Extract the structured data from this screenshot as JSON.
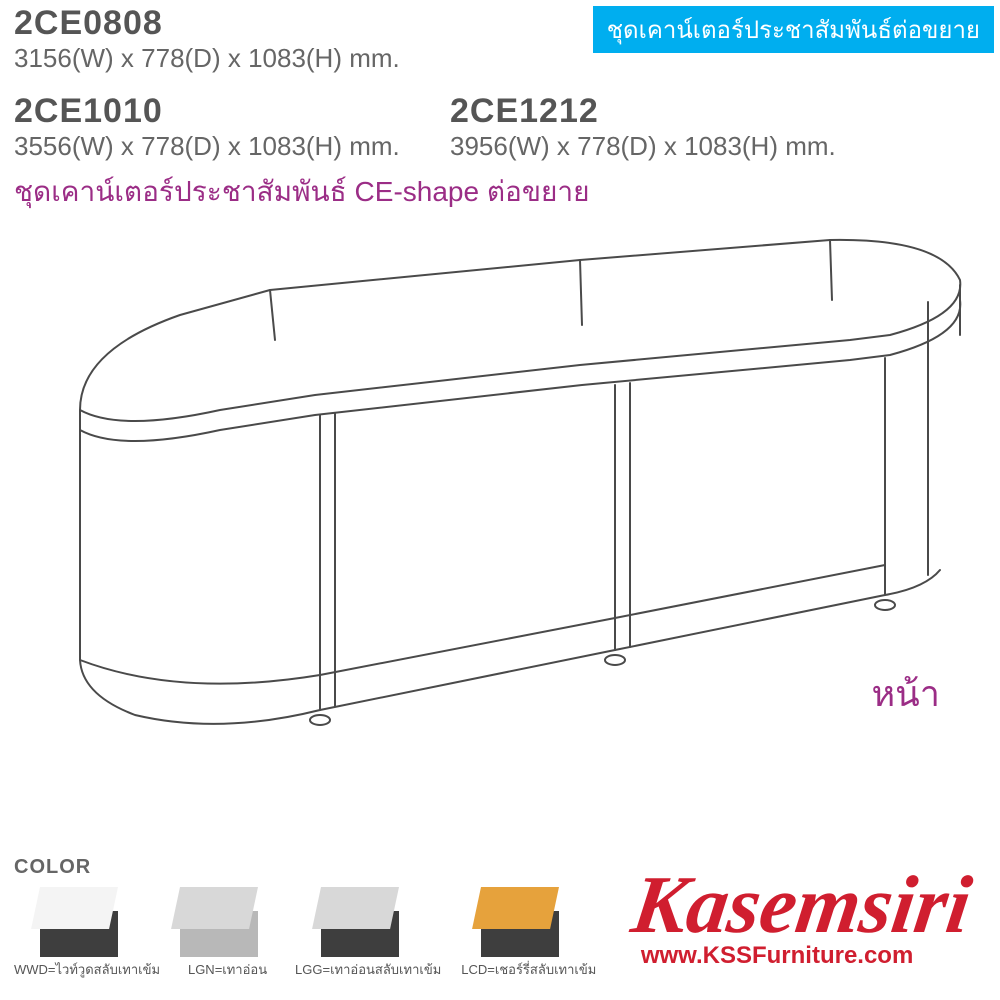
{
  "header_badge": "ชุดเคาน์เตอร์ประชาสัมพันธ์ต่อขยาย",
  "specs": [
    {
      "code": "2CE0808",
      "dims": "3156(W) x 778(D) x 1083(H) mm."
    },
    {
      "code": "2CE1010",
      "dims": "3556(W) x 778(D) x 1083(H) mm."
    },
    {
      "code": "2CE1212",
      "dims": "3956(W) x 778(D) x 1083(H) mm."
    }
  ],
  "product_title": "ชุดเคาน์เตอร์ประชาสัมพันธ์ CE-shape ต่อขยาย",
  "front_label": "หน้า",
  "diagram": {
    "type": "line-drawing",
    "stroke": "#4a4a4a",
    "stroke_width": 2,
    "fill": "#ffffff",
    "description": "isometric reception counter with curved left and right ends, two straight middle sections, raised shelf on top"
  },
  "color_section": {
    "heading": "COLOR",
    "swatches": [
      {
        "code": "WWD",
        "desc": "ไวท์วูดสลับเทาเข้ม",
        "top_color": "#f4f4f4",
        "front_color": "#3e3e3e"
      },
      {
        "code": "LGN",
        "desc": "เทาอ่อน",
        "top_color": "#d8d8d8",
        "front_color": "#b8b8b8"
      },
      {
        "code": "LGG",
        "desc": "เทาอ่อนสลับเทาเข้ม",
        "top_color": "#d8d8d8",
        "front_color": "#3e3e3e"
      },
      {
        "code": "LCD",
        "desc": "เชอร์รี่สลับเทาเข้ม",
        "top_color": "#e6a23c",
        "front_color": "#3e3e3e"
      }
    ]
  },
  "brand": {
    "name": "Kasemsiri",
    "url": "www.KSSFurniture.com",
    "color": "#d01e2f"
  },
  "colors": {
    "badge_bg": "#00aeef",
    "badge_text": "#ffffff",
    "code_text": "#555555",
    "dim_text": "#666666",
    "accent_purple": "#9b2d86",
    "brand_red": "#d01e2f",
    "bg": "#ffffff"
  }
}
